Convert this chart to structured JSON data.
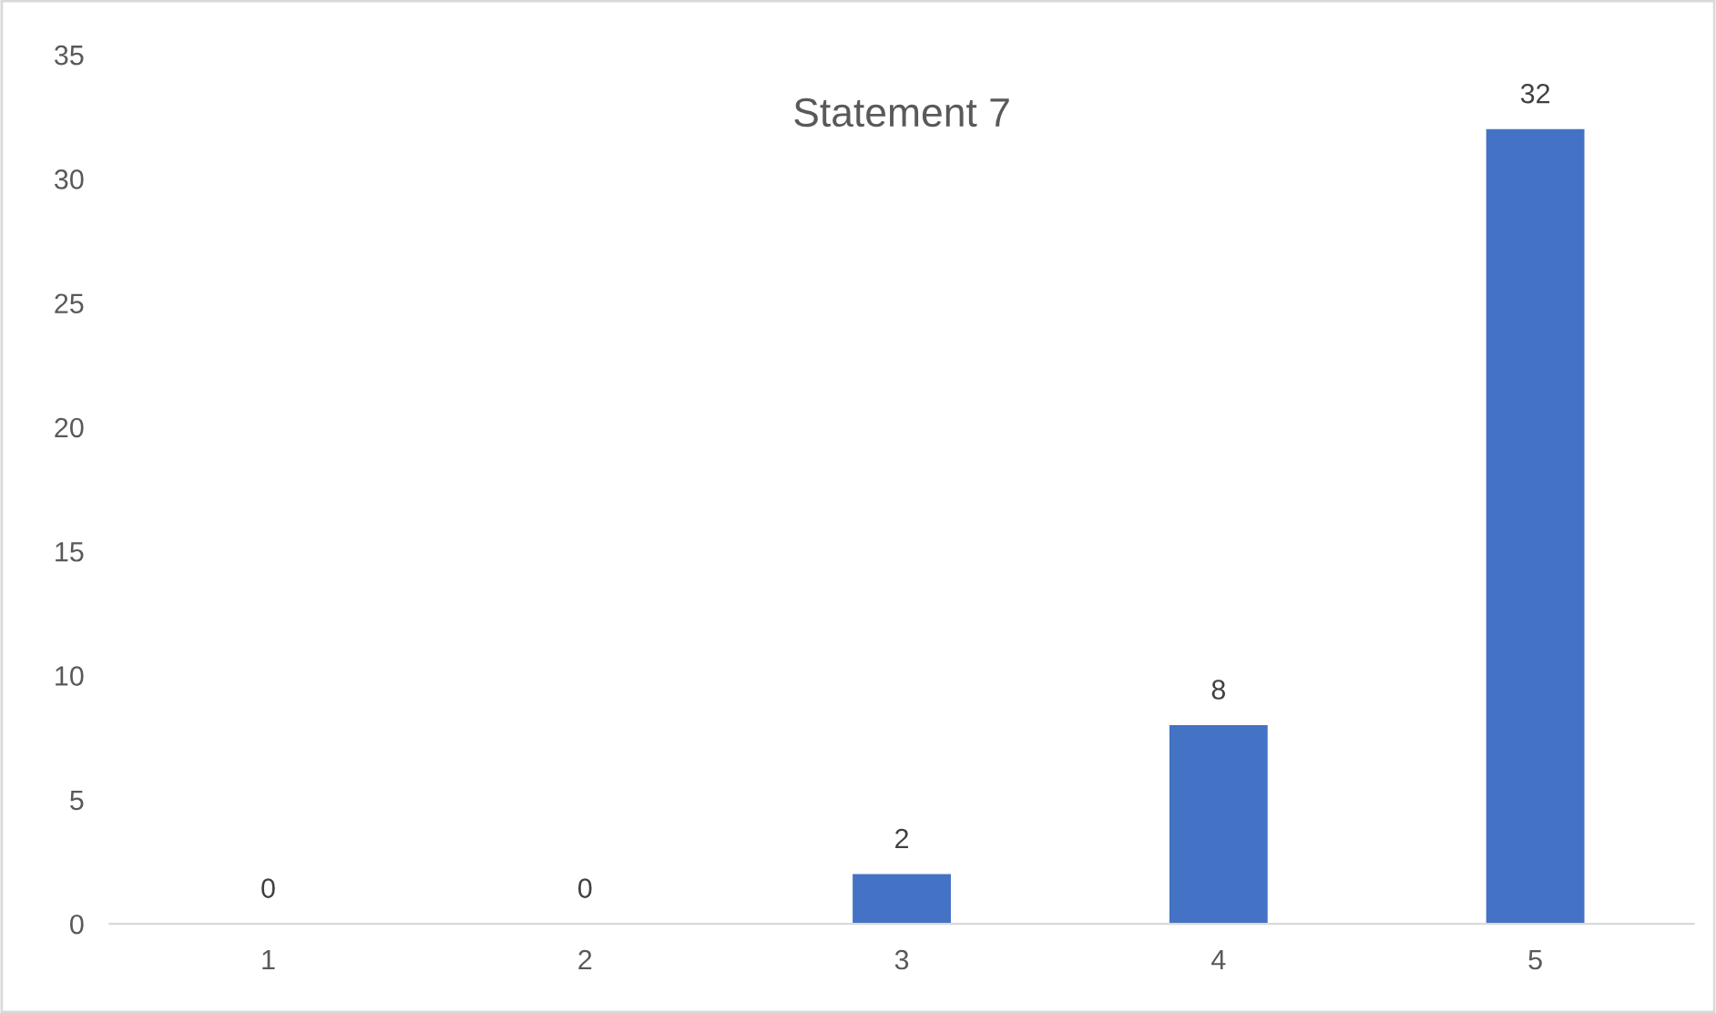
{
  "chart_data": {
    "type": "bar",
    "title": "Statement 7",
    "categories": [
      "1",
      "2",
      "3",
      "4",
      "5"
    ],
    "values": [
      0,
      0,
      2,
      8,
      32
    ],
    "color": "#4472c4",
    "ylim": [
      0,
      35
    ],
    "yticks": [
      0,
      5,
      10,
      15,
      20,
      25,
      30,
      35
    ],
    "grid": false,
    "data_labels": true
  }
}
